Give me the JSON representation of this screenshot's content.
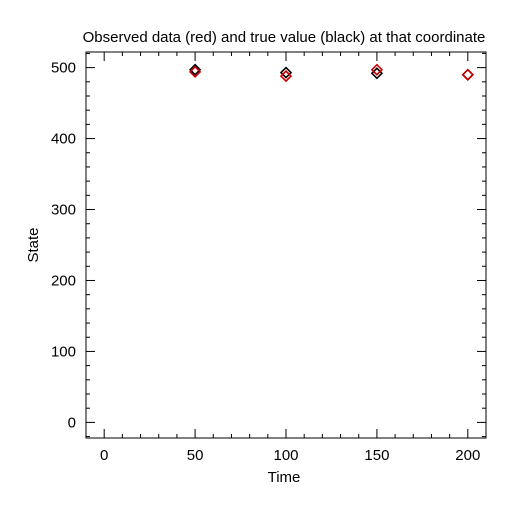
{
  "chart_data": {
    "type": "scatter",
    "title": "Observed data (red) and true value (black) at that coordinate",
    "xlabel": "Time",
    "ylabel": "State",
    "xlim": [
      -10,
      210
    ],
    "ylim": [
      -22,
      522
    ],
    "xticks": [
      0,
      50,
      100,
      150,
      200
    ],
    "yticks": [
      0,
      100,
      200,
      300,
      400,
      500
    ],
    "x_minor_step": 10,
    "y_minor_step": 20,
    "grid": false,
    "marker": "diamond-open",
    "series": [
      {
        "color": "#000000",
        "points": [
          {
            "x": 50,
            "y": 497
          },
          {
            "x": 100,
            "y": 493
          },
          {
            "x": 150,
            "y": 492
          },
          {
            "x": 200,
            "y": 490
          }
        ]
      },
      {
        "color": "#cc0000",
        "points": [
          {
            "x": 50,
            "y": 494
          },
          {
            "x": 100,
            "y": 488
          },
          {
            "x": 150,
            "y": 497
          },
          {
            "x": 200,
            "y": 490
          }
        ]
      }
    ]
  }
}
